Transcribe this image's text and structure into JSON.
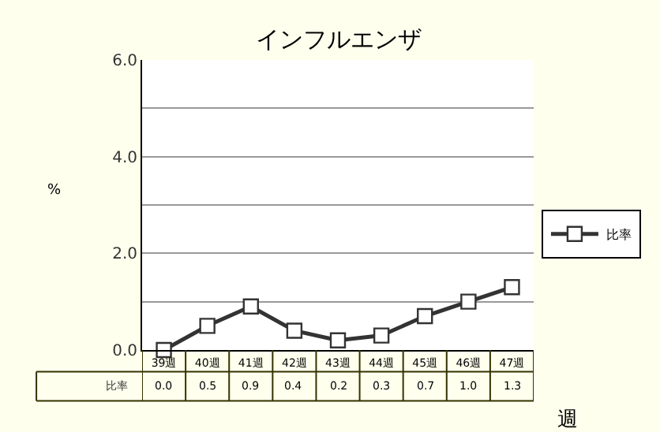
{
  "chart_data": {
    "type": "line",
    "title": "インフルエンザ",
    "xlabel": "週",
    "ylabel": "%",
    "categories": [
      "39週",
      "40週",
      "41週",
      "42週",
      "43週",
      "44週",
      "45週",
      "46週",
      "47週"
    ],
    "series": [
      {
        "name": "比率",
        "color": "#333333",
        "values": [
          0.0,
          0.5,
          0.9,
          0.4,
          0.2,
          0.3,
          0.7,
          1.0,
          1.3
        ],
        "value_labels": [
          "0.0",
          "0.5",
          "0.9",
          "0.4",
          "0.2",
          "0.3",
          "0.7",
          "1.0",
          "1.3"
        ]
      }
    ],
    "ylim": [
      0,
      6
    ],
    "yticks": [
      {
        "value": 0,
        "label": "0.0"
      },
      {
        "value": 1,
        "label": null
      },
      {
        "value": 2,
        "label": "2.0"
      },
      {
        "value": 3,
        "label": null
      },
      {
        "value": 4,
        "label": "4.0"
      },
      {
        "value": 5,
        "label": null
      },
      {
        "value": 6,
        "label": "6.0"
      }
    ],
    "grid": "y",
    "legend": "right",
    "marker": "square",
    "line_style": "solid"
  }
}
